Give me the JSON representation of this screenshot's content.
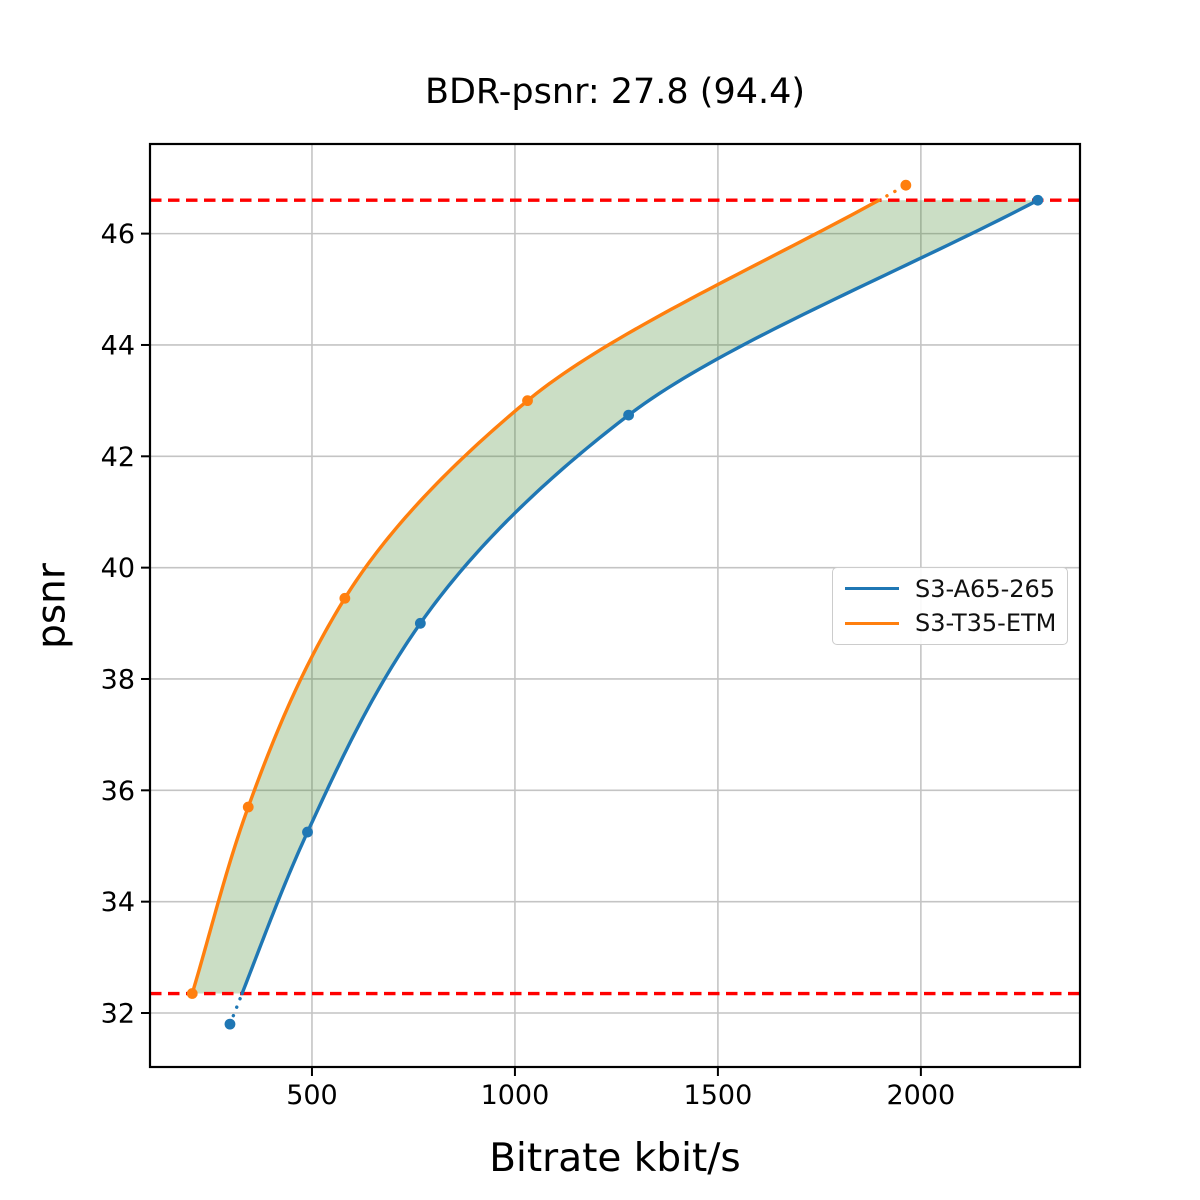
{
  "chart_data": {
    "type": "line",
    "title": "BDR-psnr: 27.8 (94.4)",
    "xlabel": "Bitrate kbit/s",
    "ylabel": "psnr",
    "xlim": [
      101,
      2392
    ],
    "ylim": [
      31.03,
      47.61
    ],
    "xticks": [
      500,
      1000,
      1500,
      2000
    ],
    "yticks": [
      32,
      34,
      36,
      38,
      40,
      42,
      44,
      46
    ],
    "grid": true,
    "grid_color": "#c4c4c4",
    "legend_position": "center-right",
    "series": [
      {
        "name": "S3-A65-265",
        "color": "#1f77b4",
        "points": [
          [
            298,
            31.8
          ],
          [
            489,
            35.25
          ],
          [
            767,
            39.0
          ],
          [
            1280,
            42.74
          ],
          [
            2288,
            46.6
          ]
        ]
      },
      {
        "name": "S3-T35-ETM",
        "color": "#ff7f0e",
        "points": [
          [
            205,
            32.35
          ],
          [
            343,
            35.7
          ],
          [
            581,
            39.45
          ],
          [
            1031,
            43.0
          ],
          [
            1963,
            46.87
          ]
        ]
      }
    ],
    "overlap_bounds": {
      "lower_psnr": 32.35,
      "upper_psnr": 46.6,
      "line_color": "#ff0000",
      "line_style": "dashed"
    },
    "fill_between": {
      "color": "#46872d",
      "opacity": 0.28
    }
  }
}
